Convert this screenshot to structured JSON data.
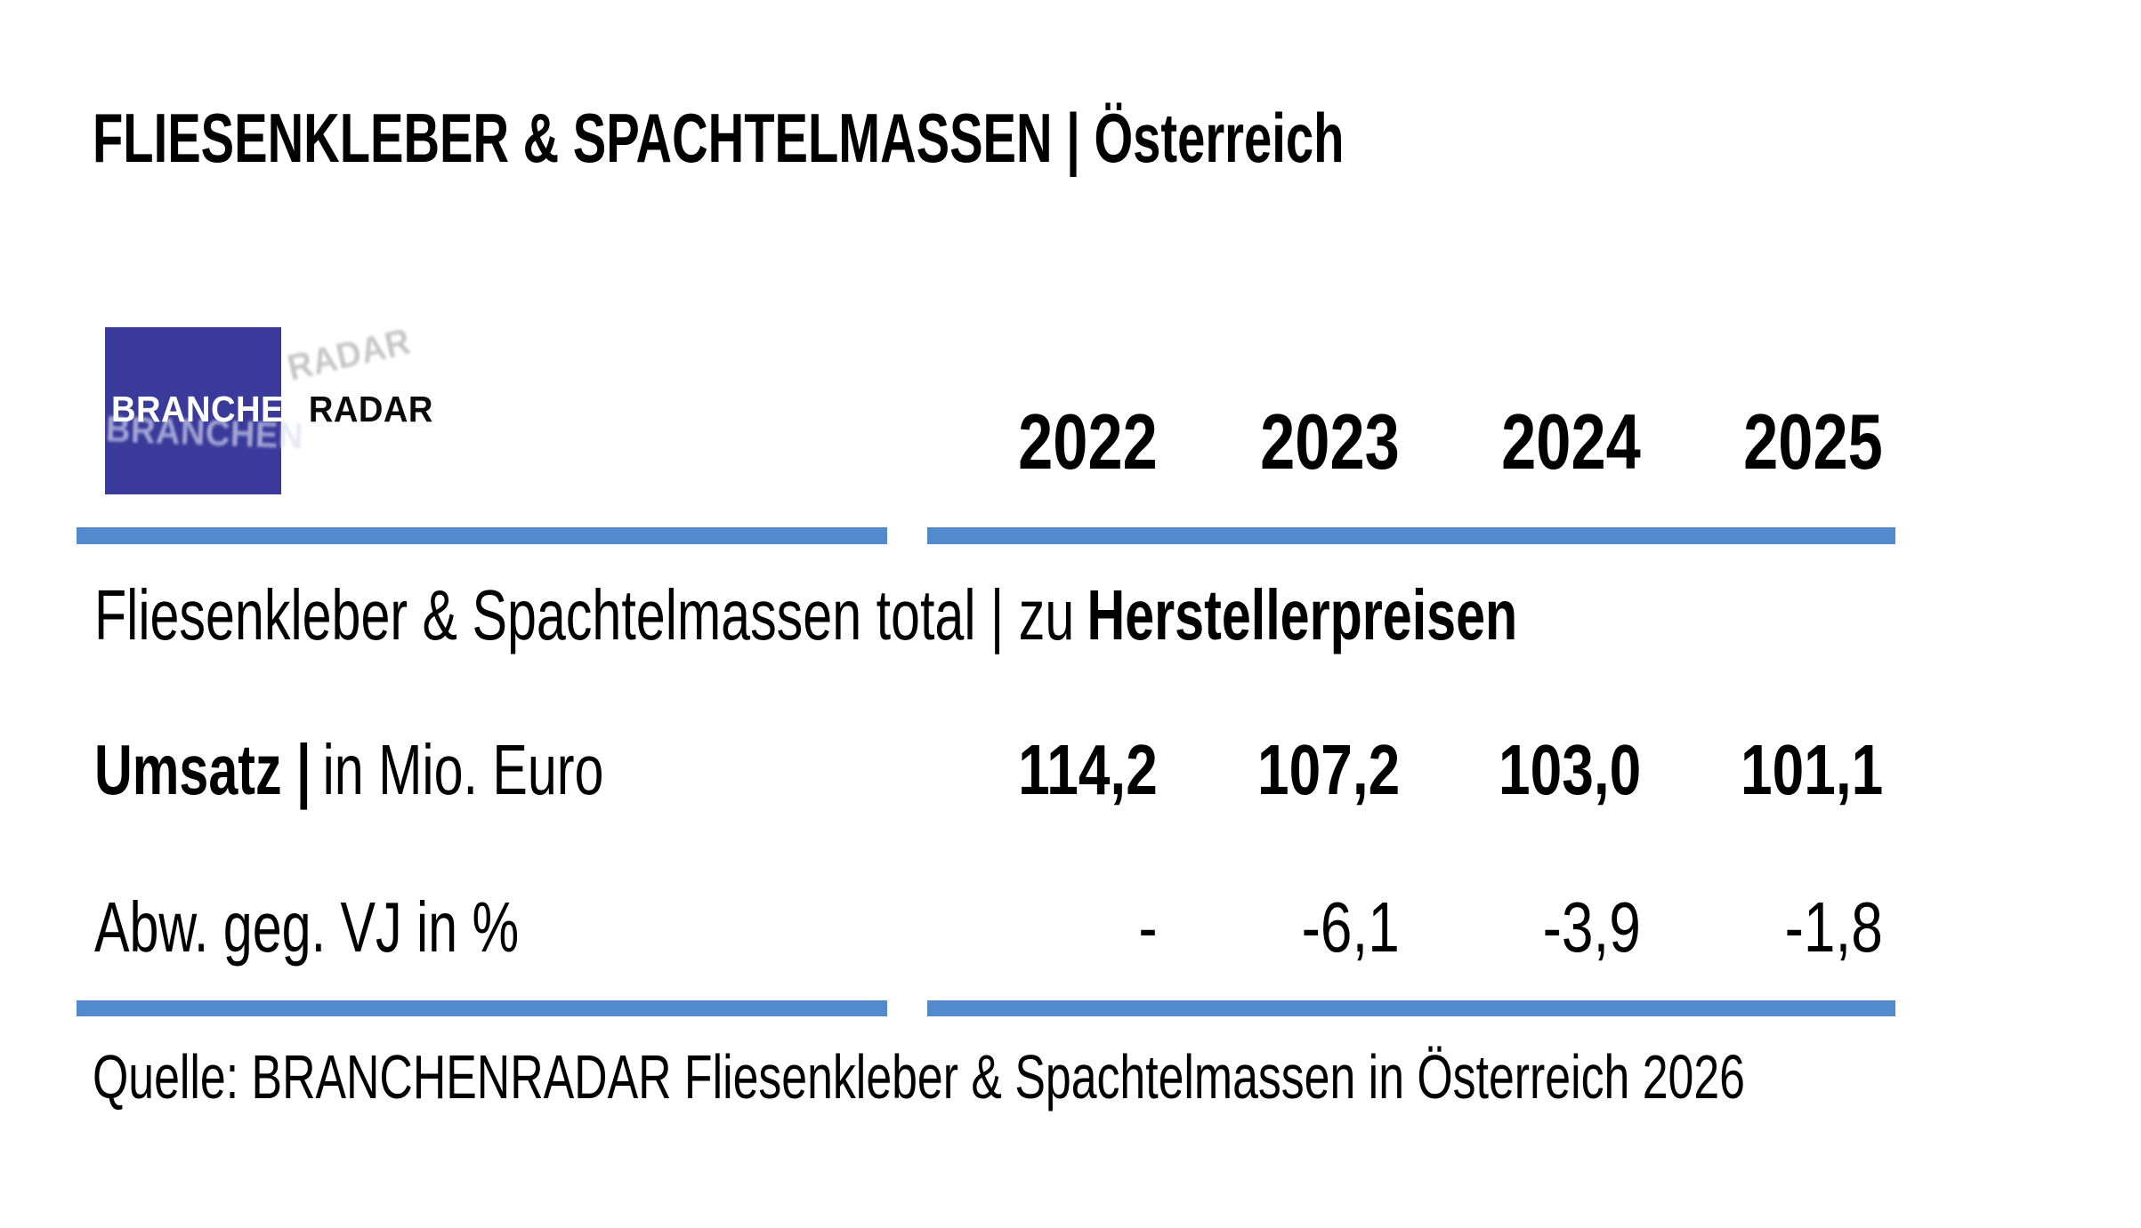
{
  "page": {
    "title": "FLIESENKLEBER & SPACHTELMASSEN | Österreich",
    "source": "Quelle: BRANCHENRADAR Fliesenkleber & Spachtelmassen in Österreich 2026"
  },
  "logo": {
    "part1": "BRANCHEN",
    "part2": "RADAR"
  },
  "table": {
    "years": [
      "2022",
      "2023",
      "2024",
      "2025"
    ],
    "group_header": {
      "prefix": "Fliesenkleber & Spachtelmassen total | zu",
      "bold": "Herstellerpreisen"
    },
    "rows": [
      {
        "label_bold": "Umsatz |",
        "label_rest": "in Mio. Euro",
        "values": [
          "114,2",
          "107,2",
          "103,0",
          "101,1"
        ]
      },
      {
        "label": "Abw. geg. VJ in %",
        "values": [
          "-",
          "-6,1",
          "-3,9",
          "-1,8"
        ]
      }
    ]
  },
  "chart_data": {
    "type": "table",
    "title": "FLIESENKLEBER & SPACHTELMASSEN | Österreich",
    "group": "Fliesenkleber & Spachtelmassen total | zu Herstellerpreisen",
    "columns": [
      "2022",
      "2023",
      "2024",
      "2025"
    ],
    "rows": [
      {
        "label": "Umsatz | in Mio. Euro",
        "values": [
          114.2,
          107.2,
          103.0,
          101.1
        ]
      },
      {
        "label": "Abw. geg. VJ in %",
        "values": [
          null,
          -6.1,
          -3.9,
          -1.8
        ]
      }
    ],
    "source": "Quelle: BRANCHENRADAR Fliesenkleber & Spachtelmassen in Österreich 2026"
  },
  "colors": {
    "accent_blue": "#5389CD",
    "logo_blue": "#3A3A9B"
  }
}
